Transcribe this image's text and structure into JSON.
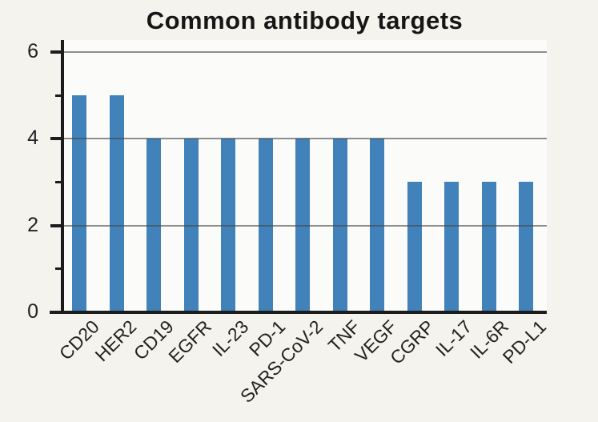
{
  "title": "Common antibody targets",
  "colors": {
    "bar": "#4182ba",
    "page_background": "#f4f3ee",
    "plot_background": "#fbfbf9",
    "gridline": "rgba(70,70,70,0.6)",
    "axis": "#1c1c1c",
    "text": "#222222"
  },
  "chart_data": {
    "type": "bar",
    "title": "Common antibody targets",
    "categories": [
      "CD20",
      "HER2",
      "CD19",
      "EGFR",
      "IL-23",
      "PD-1",
      "SARS-CoV-2",
      "TNF",
      "VEGF",
      "CGRP",
      "IL-17",
      "IL-6R",
      "PD-L1"
    ],
    "values": [
      5,
      5,
      4,
      4,
      4,
      4,
      4,
      4,
      4,
      3,
      3,
      3,
      3
    ],
    "xlabel": "",
    "ylabel": "",
    "ylim": [
      0,
      6.3
    ],
    "yticks_major": [
      0,
      2,
      4,
      6
    ],
    "yticks_minor": [
      1,
      3,
      5
    ],
    "ytick_labels": [
      "0",
      "2",
      "4",
      "6"
    ],
    "xtick_rotation_deg": 45,
    "grid": "horizontal gridlines at major y-ticks, drawn over bars",
    "legend_position": "none"
  }
}
